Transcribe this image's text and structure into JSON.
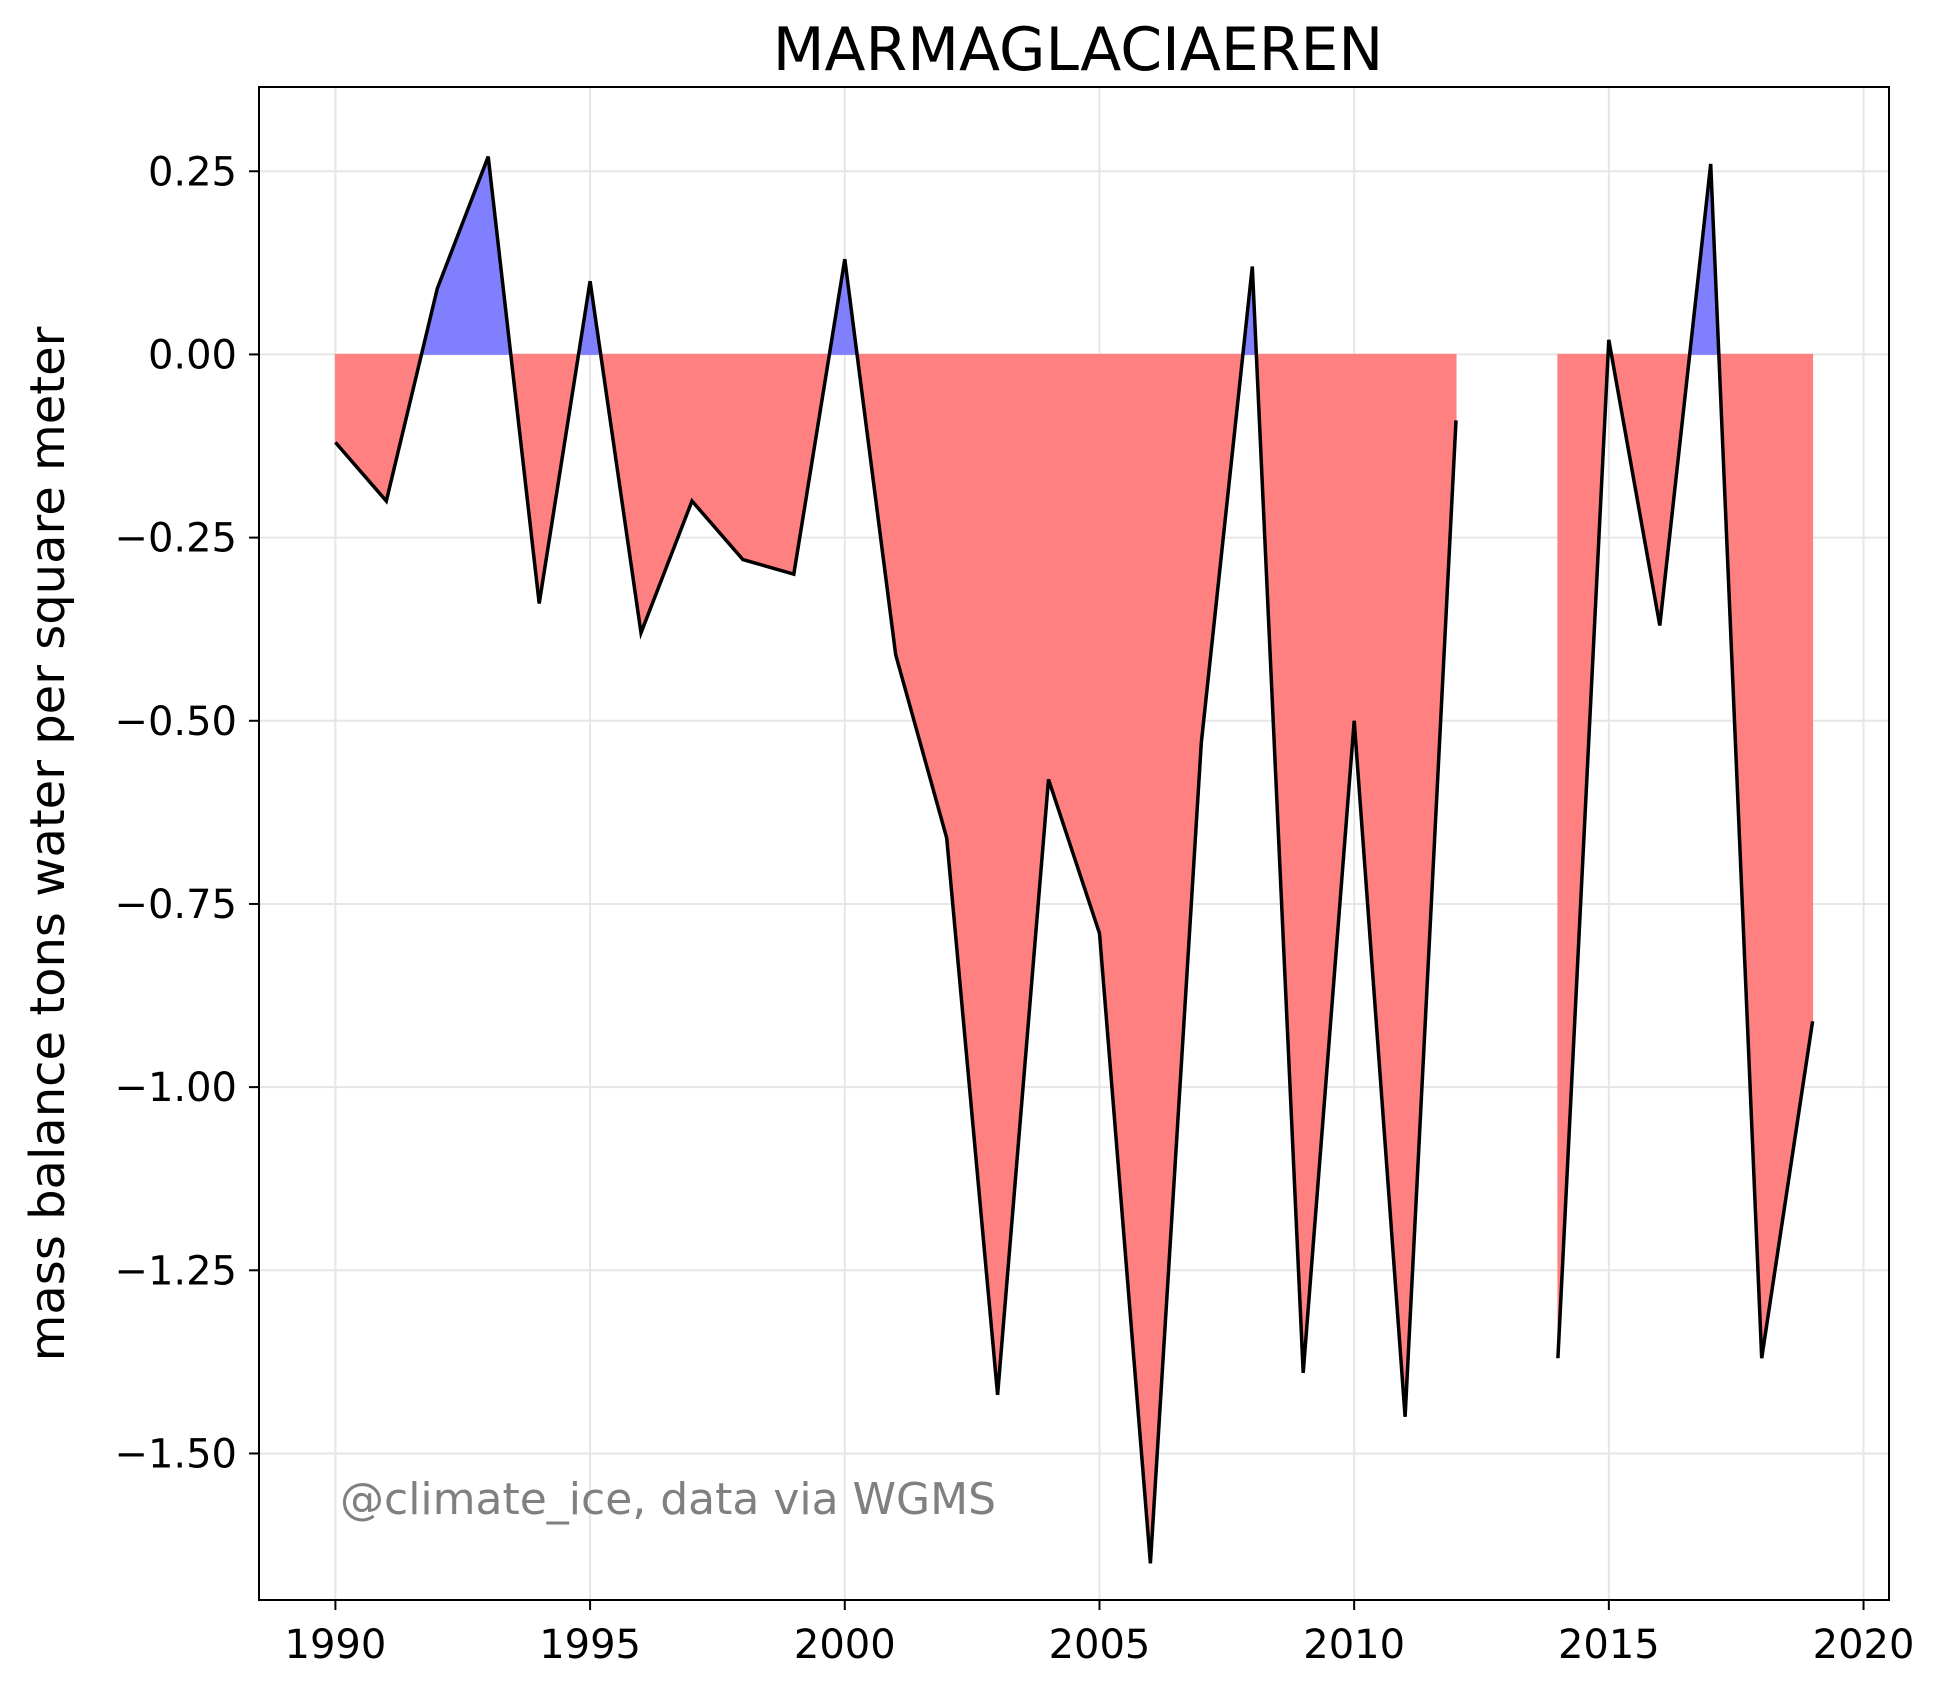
{
  "chart_data": {
    "type": "area",
    "title": "MARMAGLACIAEREN",
    "xlabel": "",
    "ylabel": "mass balance tons water per square meter",
    "xlim": [
      1988.5,
      2020.5
    ],
    "ylim": [
      -1.7,
      0.365
    ],
    "xticks": [
      1990,
      1995,
      2000,
      2005,
      2010,
      2015,
      2020
    ],
    "yticks": [
      0.25,
      0.0,
      -0.25,
      -0.5,
      -0.75,
      -1.0,
      -1.25,
      -1.5
    ],
    "ytick_labels": [
      "0.25",
      "0.00",
      "−0.25",
      "−0.50",
      "−0.75",
      "−1.00",
      "−1.25",
      "−1.50"
    ],
    "grid": true,
    "positive_color": "#8080ff",
    "negative_color": "#ff8080",
    "line_color": "#000000",
    "annotation": "@climate_ice, data via WGMS",
    "series": [
      {
        "segments": [
          {
            "x": [
              1990,
              1991,
              1992,
              1993,
              1994,
              1995,
              1996,
              1997,
              1998,
              1999,
              2000,
              2001,
              2002,
              2003,
              2004,
              2005,
              2006,
              2007,
              2008,
              2009,
              2010,
              2011,
              2012
            ],
            "y": [
              -0.12,
              -0.2,
              0.09,
              0.27,
              -0.34,
              0.1,
              -0.38,
              -0.2,
              -0.28,
              -0.3,
              0.13,
              -0.41,
              -0.66,
              -1.42,
              -0.58,
              -0.79,
              -1.65,
              -0.53,
              0.12,
              -1.39,
              -0.5,
              -1.45,
              -0.09
            ]
          },
          {
            "x": [
              2014,
              2015,
              2016,
              2017,
              2018,
              2019
            ],
            "y": [
              -1.37,
              0.02,
              -0.37,
              0.26,
              -1.37,
              -0.91
            ]
          }
        ]
      }
    ]
  }
}
